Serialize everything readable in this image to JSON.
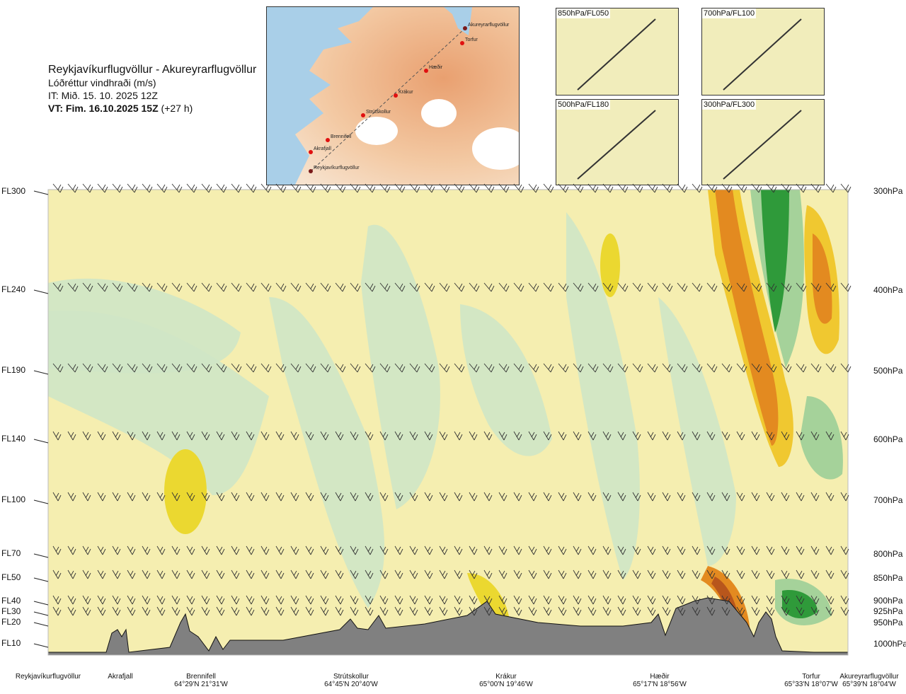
{
  "header": {
    "route": "Reykjavíkurflugvöllur - Akureyrarflugvöllur",
    "variable": "Lóðréttur vindhraði (m/s)",
    "issue_time": "IT: Mið. 15. 10. 2025 12Z",
    "valid_time": "VT: Fim. 16.10.2025 15Z",
    "lead": "(+27 h)"
  },
  "route_map": {
    "waypoints": [
      "Akureyrarflugvöllur",
      "Torfur",
      "Hæðir",
      "Krákur",
      "Strútskollur",
      "Brennifell",
      "Akrafjall",
      "Reykjavíkurflugvöllur"
    ]
  },
  "level_maps": [
    {
      "label": "850hPa/FL050"
    },
    {
      "label": "700hPa/FL100"
    },
    {
      "label": "500hPa/FL180"
    },
    {
      "label": "300hPa/FL300"
    }
  ],
  "chart_data": {
    "type": "heatmap",
    "title": "Lóðréttur vindhraði (m/s)",
    "flight_levels": [
      {
        "label": "FL300",
        "hpa": 300
      },
      {
        "label": "FL240",
        "hpa": 400
      },
      {
        "label": "FL190",
        "hpa": 500
      },
      {
        "label": "FL140",
        "hpa": 600
      },
      {
        "label": "FL100",
        "hpa": 700
      },
      {
        "label": "FL70",
        "hpa": 800
      },
      {
        "label": "FL50",
        "hpa": 850
      },
      {
        "label": "FL40",
        "hpa": 900
      },
      {
        "label": "FL30",
        "hpa": 925
      },
      {
        "label": "FL20",
        "hpa": 950
      },
      {
        "label": "FL10",
        "hpa": 1000
      }
    ],
    "pressure_labels": [
      "300hPa",
      "400hPa",
      "500hPa",
      "600hPa",
      "700hPa",
      "800hPa",
      "850hPa",
      "900hPa",
      "925hPa",
      "950hPa",
      "1000hPa"
    ],
    "locations": [
      {
        "name": "Reykjavíkurflugvöllur",
        "coord": ""
      },
      {
        "name": "Akrafjall",
        "coord": ""
      },
      {
        "name": "Brennifell",
        "coord": "64°29'N 21°31'W"
      },
      {
        "name": "Strútskollur",
        "coord": "64°45'N 20°40'W"
      },
      {
        "name": "Krákur",
        "coord": "65°00'N 19°46'W"
      },
      {
        "name": "Hæðir",
        "coord": "65°17'N 18°56'W"
      },
      {
        "name": "Torfur",
        "coord": "65°33'N 18°07'W"
      },
      {
        "name": "Akureyrarflugvöllur",
        "coord": "65°39'N 18°04'W"
      }
    ],
    "legend": "none",
    "grid": false
  }
}
